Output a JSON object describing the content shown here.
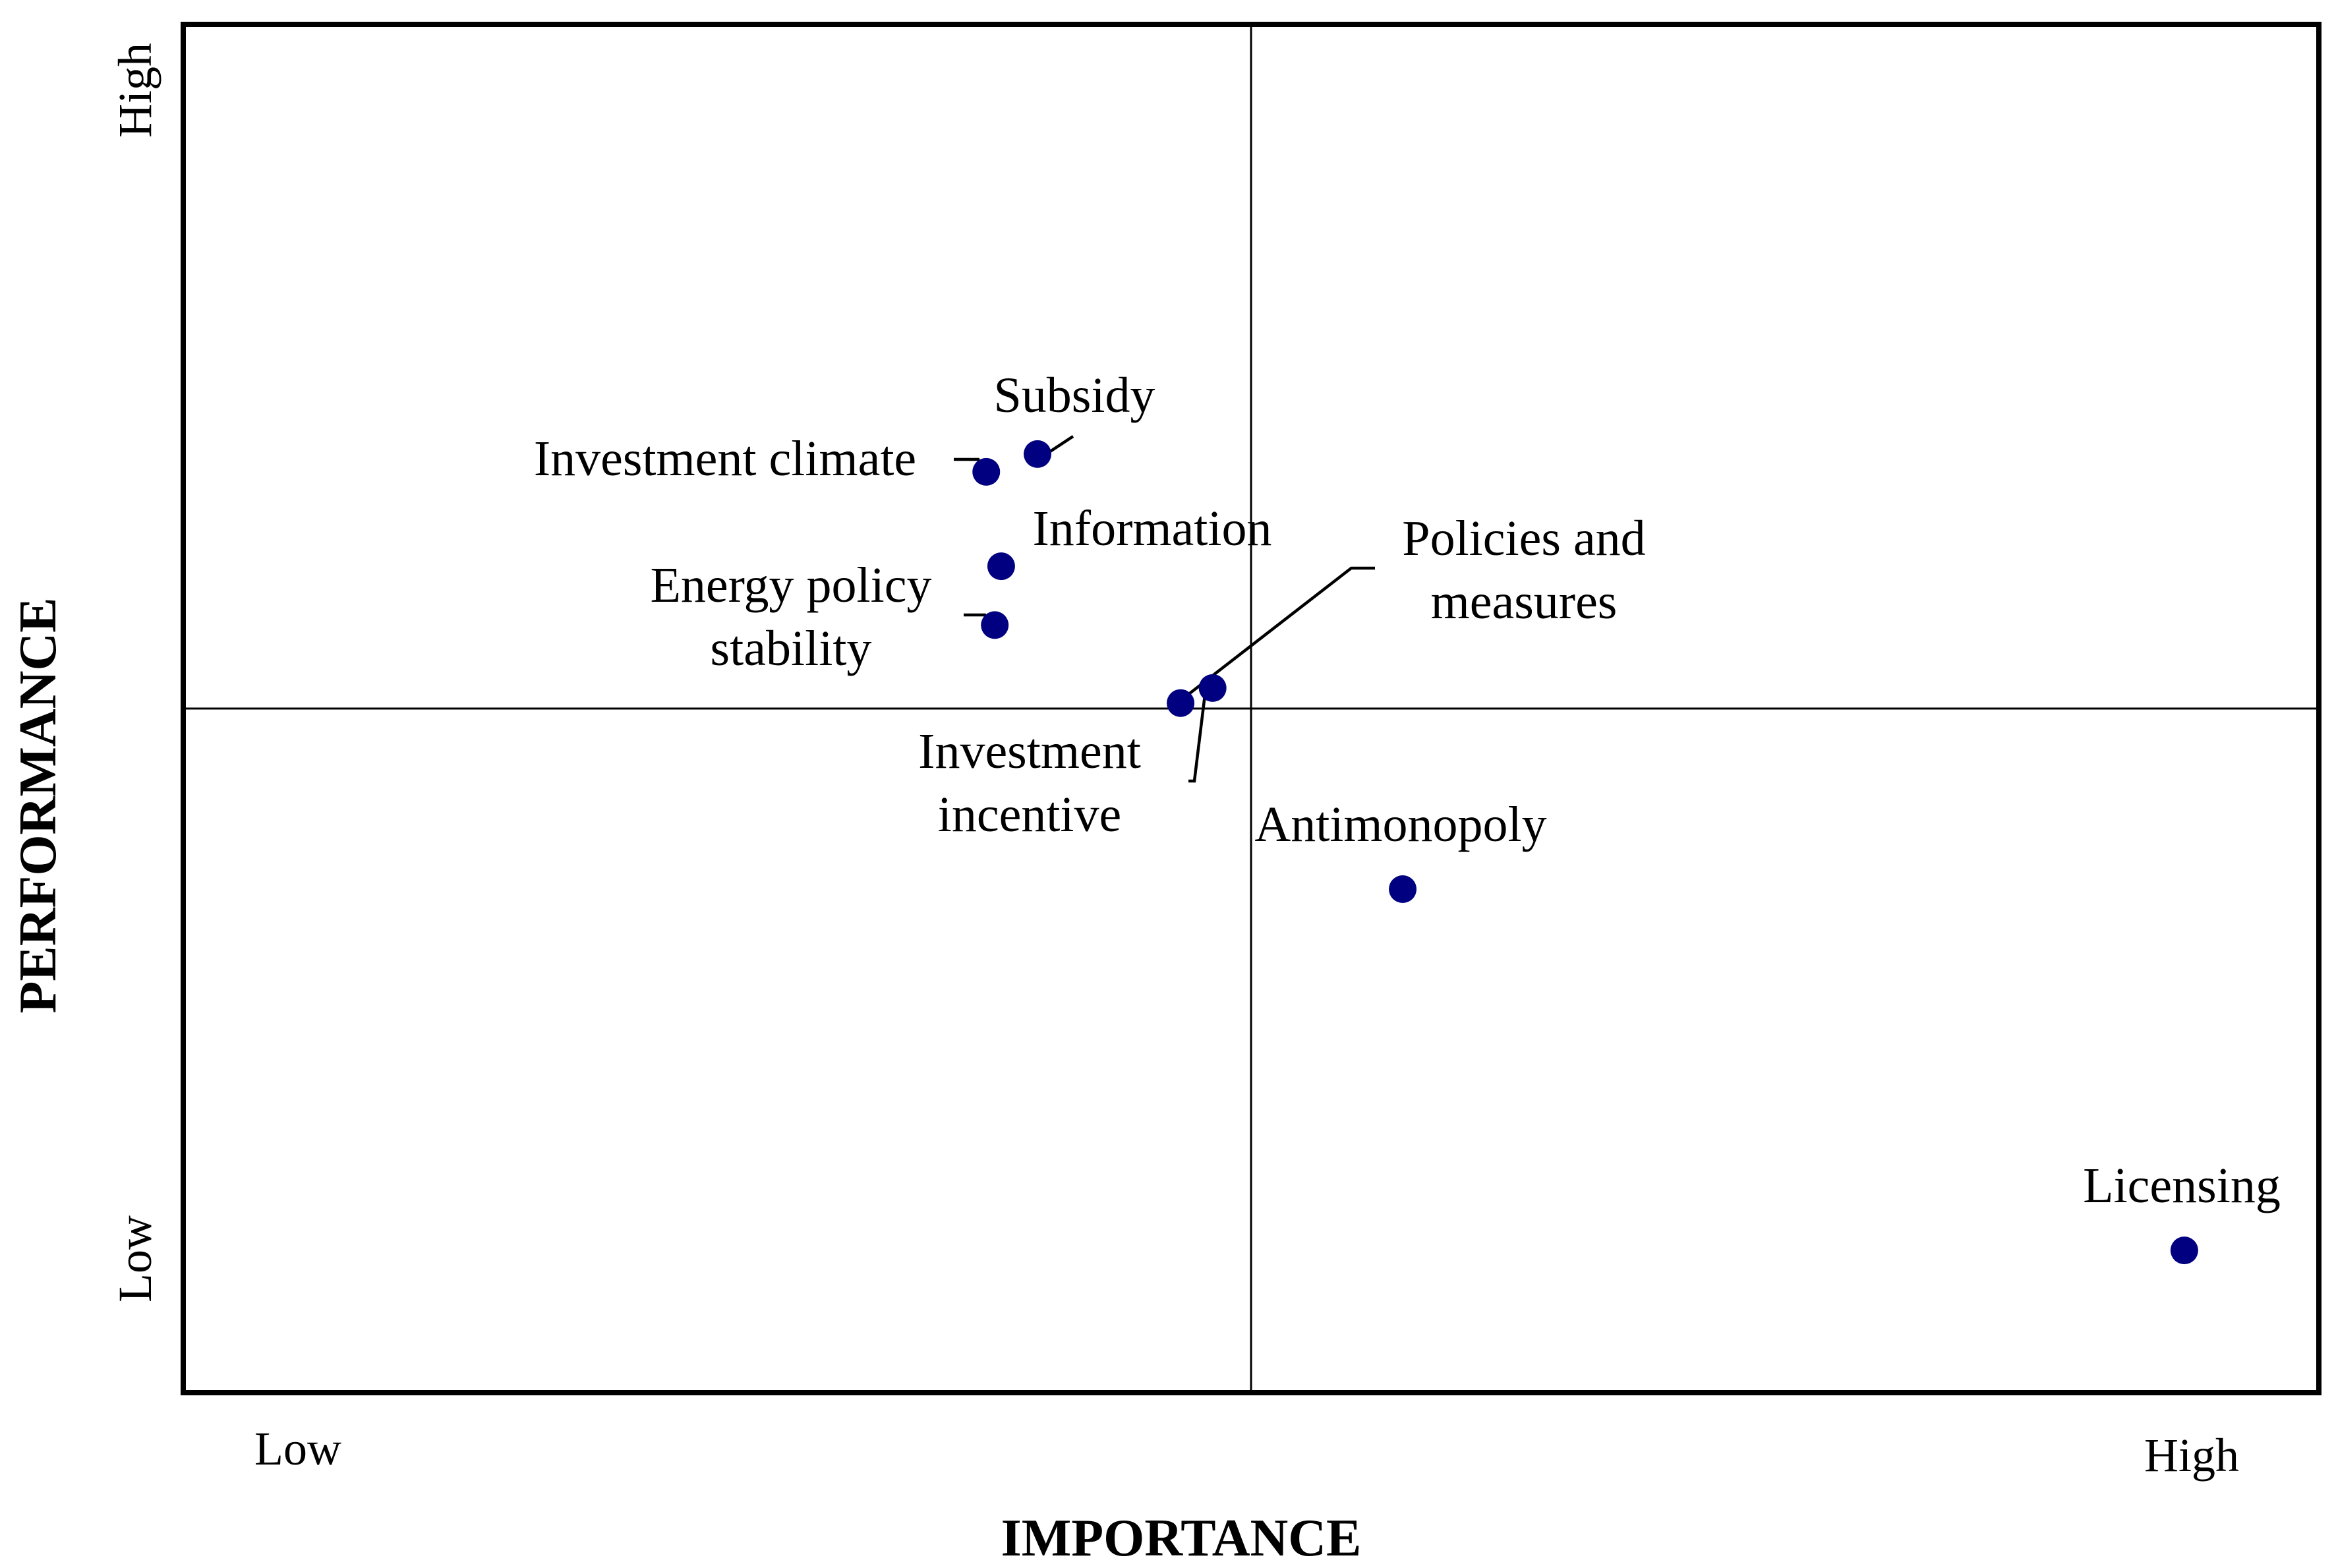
{
  "chart_data": {
    "type": "scatter",
    "title": "",
    "xlabel": "IMPORTANCE",
    "ylabel": "PERFORMANCE",
    "x_tick_labels": {
      "low": "Low",
      "high": "High"
    },
    "y_tick_labels": {
      "low": "Low",
      "high": "High"
    },
    "xlim": [
      0,
      10
    ],
    "ylim": [
      0,
      10
    ],
    "quadrant_divider": {
      "x": 5.0,
      "y": 5.0
    },
    "grid": false,
    "legend": "none",
    "marker_color": "#000080",
    "points": [
      {
        "label": "Subsidy",
        "x": 4.0,
        "y": 6.86
      },
      {
        "label": "Investment climate",
        "x": 3.76,
        "y": 6.73
      },
      {
        "label": "Information",
        "x": 3.83,
        "y": 6.04
      },
      {
        "label": "Energy policy stability",
        "x": 3.8,
        "y": 5.61
      },
      {
        "label": "Policies and measures",
        "x": 4.82,
        "y": 5.15
      },
      {
        "label": "Investment incentive",
        "x": 4.67,
        "y": 5.04
      },
      {
        "label": "Antimonopoly",
        "x": 5.71,
        "y": 3.68
      },
      {
        "label": "Licensing",
        "x": 9.37,
        "y": 1.04
      }
    ]
  }
}
